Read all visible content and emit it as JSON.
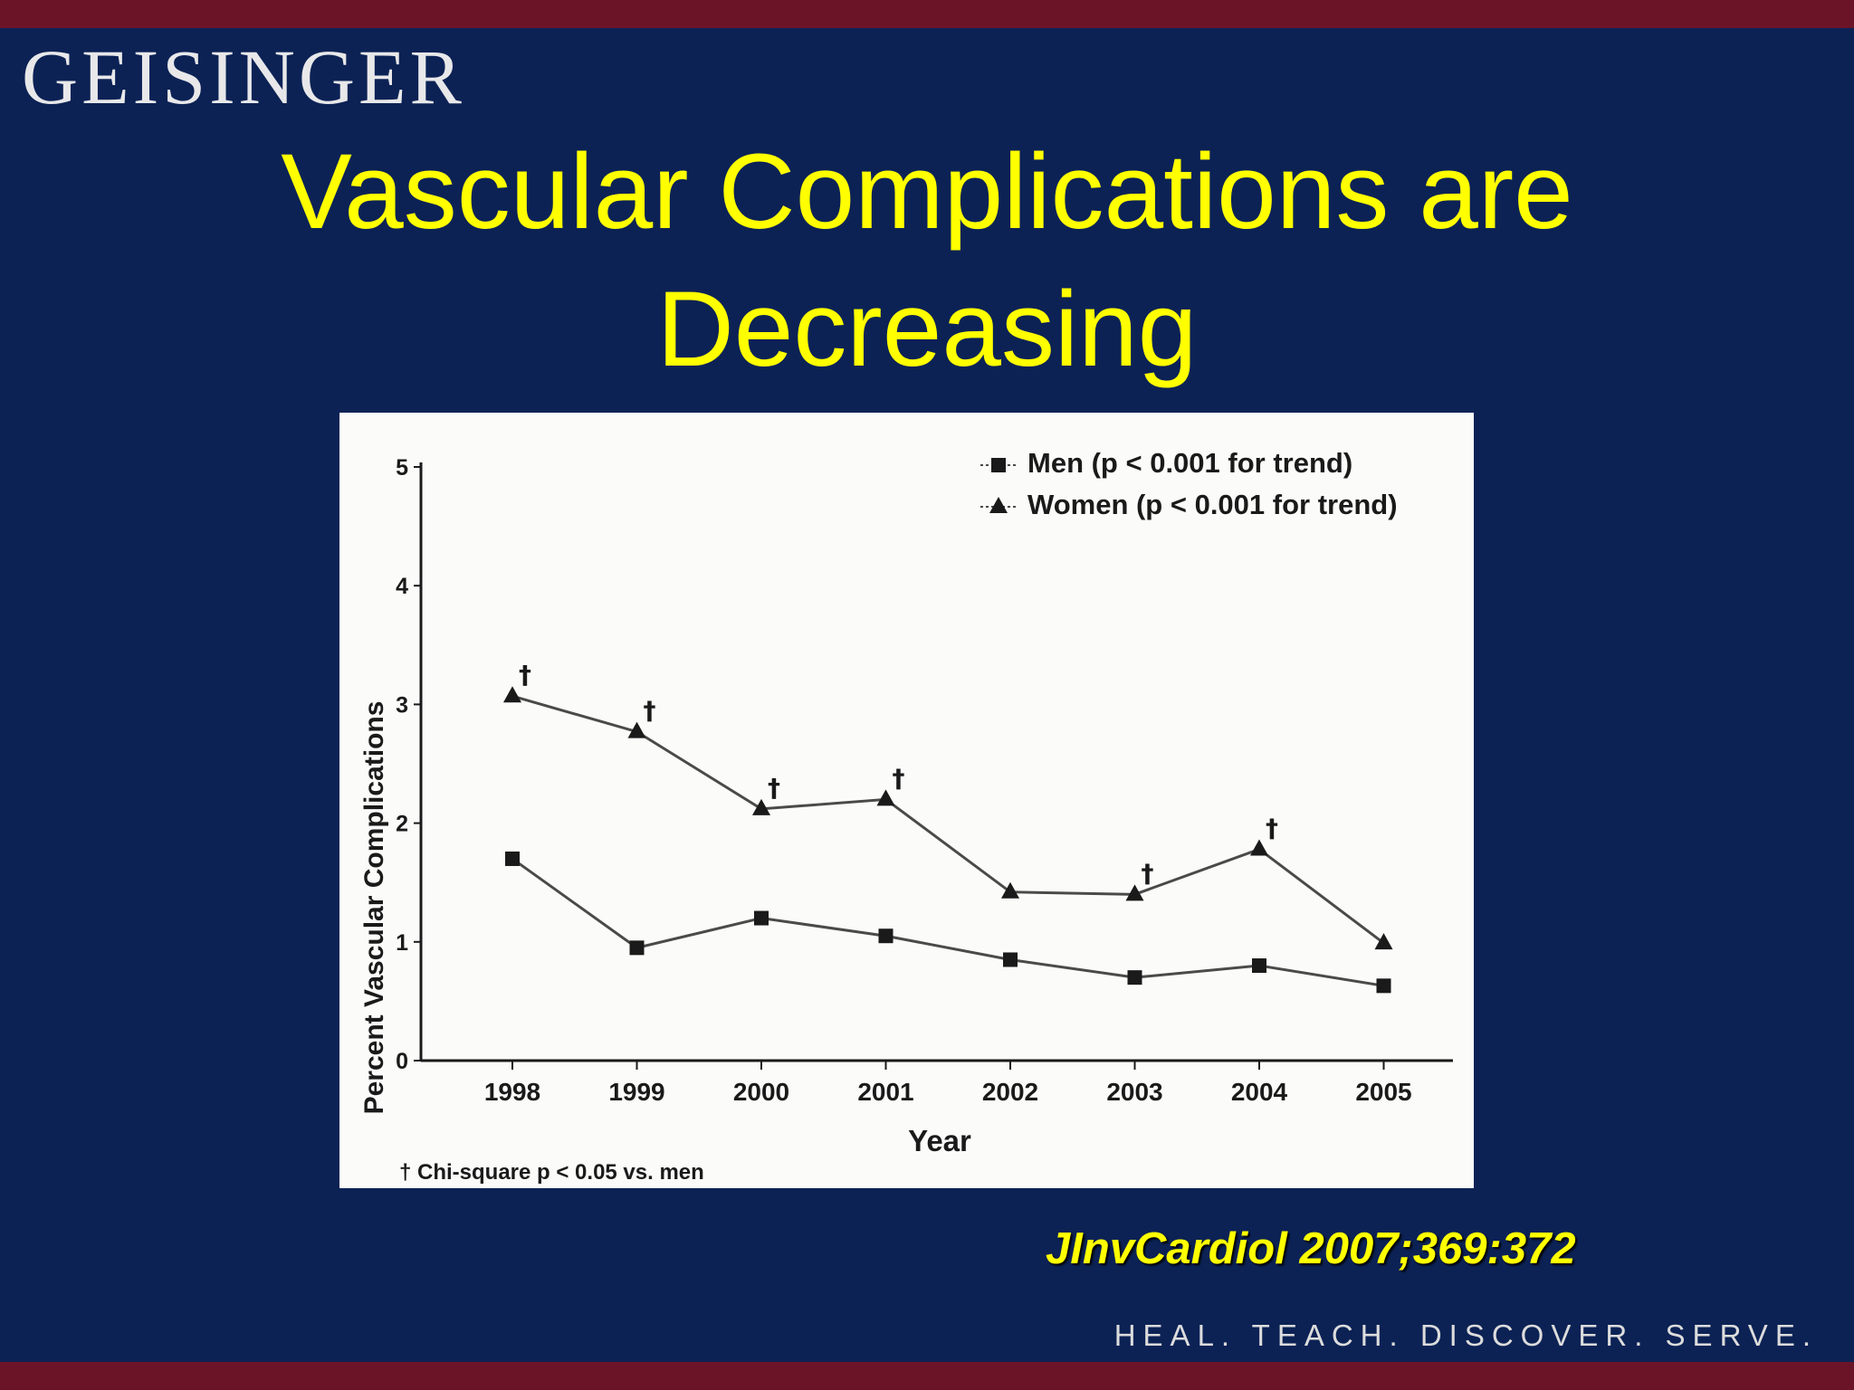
{
  "header": {
    "logo": "GEISINGER",
    "title_line1": "Vascular Complications are",
    "title_line2": "Decreasing"
  },
  "footer": {
    "citation": "JInvCardiol  2007;369:372",
    "tagline": "HEAL. TEACH. DISCOVER. SERVE."
  },
  "colors": {
    "background": "#0c2255",
    "accent_bar": "#6b1427",
    "title": "#ffff00"
  },
  "chart_data": {
    "type": "line",
    "categories": [
      "1998",
      "1999",
      "2000",
      "2001",
      "2002",
      "2003",
      "2004",
      "2005"
    ],
    "series": [
      {
        "name": "Men (p < 0.001 for trend)",
        "marker": "square",
        "values": [
          1.7,
          0.95,
          1.2,
          1.05,
          0.85,
          0.7,
          0.8,
          0.63
        ]
      },
      {
        "name": "Women (p < 0.001 for trend)",
        "marker": "triangle",
        "values": [
          3.07,
          2.77,
          2.12,
          2.2,
          1.42,
          1.4,
          1.78,
          0.99
        ],
        "significance_marker": "†",
        "significant": [
          true,
          true,
          true,
          true,
          false,
          true,
          true,
          false
        ]
      }
    ],
    "xlabel": "Year",
    "ylabel": "Percent Vascular Complications",
    "ylim": [
      0,
      5
    ],
    "yticks": [
      "0",
      "1",
      "2",
      "3",
      "4",
      "5"
    ],
    "footnote": "† Chi-square p < 0.05 vs. men",
    "legend_position": "top-right",
    "grid": false
  }
}
